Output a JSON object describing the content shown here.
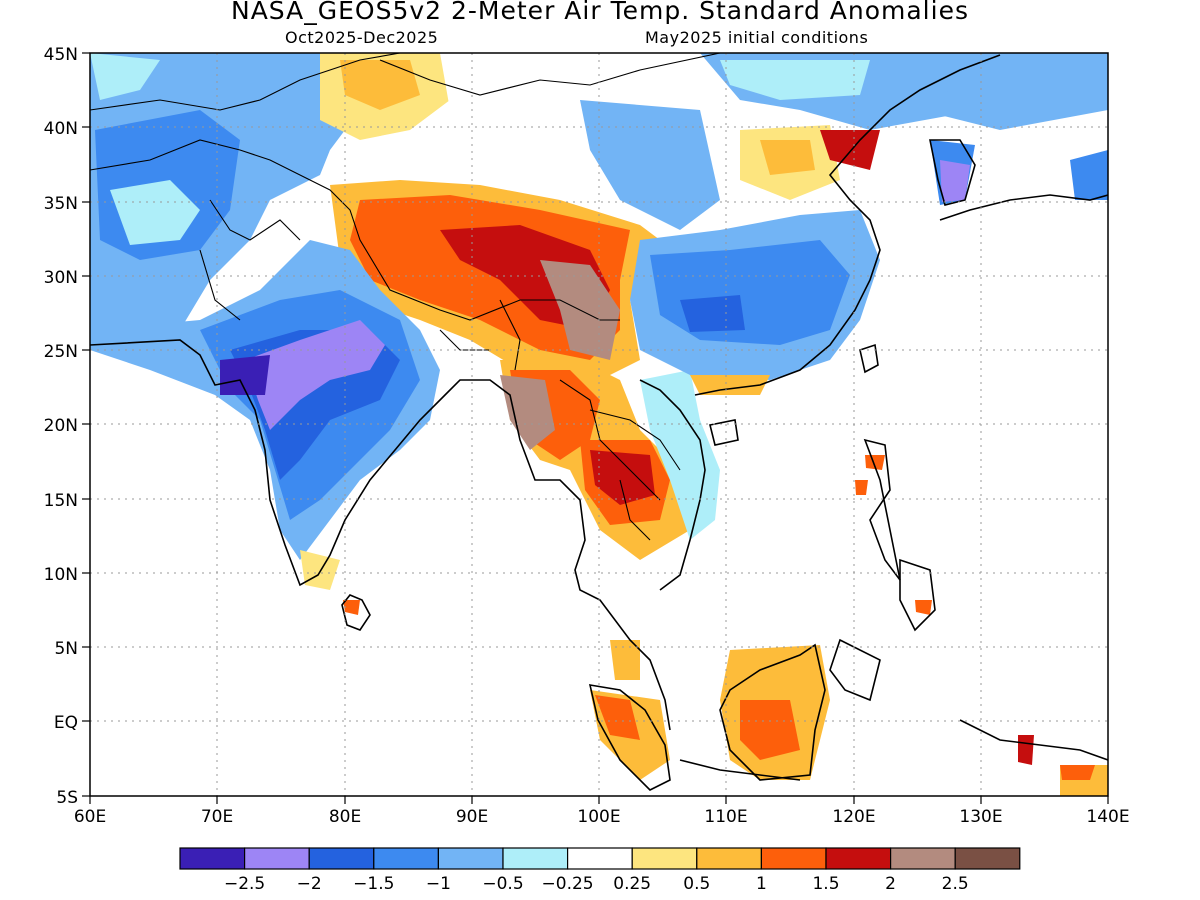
{
  "title": "NASA_GEOS5v2 2-Meter Air Temp. Standard Anomalies",
  "subtitle_left": "Oct2025-Dec2025",
  "subtitle_right": "May2025 initial conditions",
  "map": {
    "lon_range": [
      60,
      140
    ],
    "lat_range": [
      -5,
      45
    ],
    "x_ticks": [
      "60E",
      "70E",
      "80E",
      "90E",
      "100E",
      "110E",
      "120E",
      "130E",
      "140E"
    ],
    "y_ticks": [
      "45N",
      "40N",
      "35N",
      "30N",
      "25N",
      "20N",
      "15N",
      "10N",
      "5N",
      "EQ",
      "5S"
    ]
  },
  "legend": {
    "colors": [
      "#3a1fb5",
      "#9d85f5",
      "#2462df",
      "#3d8af0",
      "#72b4f5",
      "#aeeef9",
      "#ffffff",
      "#fde57f",
      "#fdbc3a",
      "#fd5f0b",
      "#c50e0e",
      "#b38b7f",
      "#7a5044"
    ],
    "labels": [
      "-2.5",
      "-2",
      "-1.5",
      "-1",
      "-0.5",
      "-0.25",
      "0.25",
      "0.5",
      "1",
      "1.5",
      "2",
      "2.5"
    ]
  },
  "anomaly_regions": [
    {
      "name": "tibet-warm",
      "value": 1.5
    },
    {
      "name": "central-tibet-hot",
      "value": 2
    },
    {
      "name": "myanmar-hot",
      "value": 2.5
    },
    {
      "name": "thailand-warm",
      "value": 2
    },
    {
      "name": "india-cold",
      "value": -1.5
    },
    {
      "name": "central-india-very-cold",
      "value": -2
    },
    {
      "name": "south-china-cold",
      "value": -1.5
    },
    {
      "name": "central-asia-cold",
      "value": -1
    },
    {
      "name": "borneo-warm",
      "value": 1
    },
    {
      "name": "korea-cold",
      "value": -2
    }
  ]
}
